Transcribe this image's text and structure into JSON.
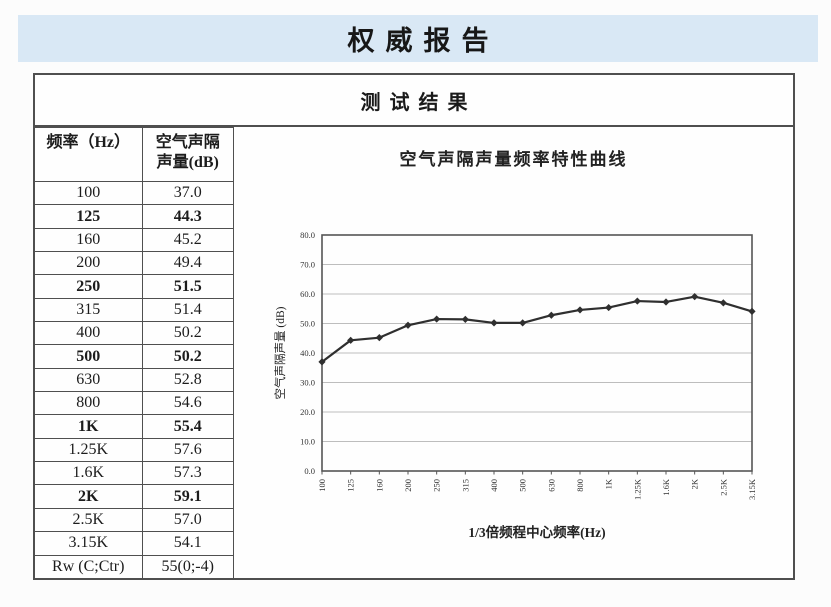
{
  "banner": {
    "title": "权威报告"
  },
  "report": {
    "section_title": "测试结果"
  },
  "table": {
    "headers": [
      "频率（Hz）",
      "空气声隔\n声量(dB)"
    ],
    "rows": [
      {
        "freq": "100",
        "value": "37.0",
        "bold": false
      },
      {
        "freq": "125",
        "value": "44.3",
        "bold": true
      },
      {
        "freq": "160",
        "value": "45.2",
        "bold": false
      },
      {
        "freq": "200",
        "value": "49.4",
        "bold": false
      },
      {
        "freq": "250",
        "value": "51.5",
        "bold": true
      },
      {
        "freq": "315",
        "value": "51.4",
        "bold": false
      },
      {
        "freq": "400",
        "value": "50.2",
        "bold": false
      },
      {
        "freq": "500",
        "value": "50.2",
        "bold": true
      },
      {
        "freq": "630",
        "value": "52.8",
        "bold": false
      },
      {
        "freq": "800",
        "value": "54.6",
        "bold": false
      },
      {
        "freq": "1K",
        "value": "55.4",
        "bold": true
      },
      {
        "freq": "1.25K",
        "value": "57.6",
        "bold": false
      },
      {
        "freq": "1.6K",
        "value": "57.3",
        "bold": false
      },
      {
        "freq": "2K",
        "value": "59.1",
        "bold": true
      },
      {
        "freq": "2.5K",
        "value": "57.0",
        "bold": false
      },
      {
        "freq": "3.15K",
        "value": "54.1",
        "bold": false
      },
      {
        "freq": "Rw (C;Ctr)",
        "value": "55(0;-4)",
        "bold": false
      }
    ]
  },
  "chart_data": {
    "type": "line",
    "title": "空气声隔声量频率特性曲线",
    "xlabel": "1/3倍频程中心频率(Hz)",
    "ylabel": "空气声隔声量 (dB)",
    "categories": [
      "100",
      "125",
      "160",
      "200",
      "250",
      "315",
      "400",
      "500",
      "630",
      "800",
      "1K",
      "1.25K",
      "1.6K",
      "2K",
      "2.5K",
      "3.15K"
    ],
    "values": [
      37.0,
      44.3,
      45.2,
      49.4,
      51.5,
      51.4,
      50.2,
      50.2,
      52.8,
      54.6,
      55.4,
      57.6,
      57.3,
      59.1,
      57.0,
      54.1
    ],
    "ylim": [
      0,
      80
    ],
    "ytick_step": 10,
    "ytick_labels": [
      "0.0",
      "10.0",
      "20.0",
      "30.0",
      "40.0",
      "50.0",
      "60.0",
      "70.0",
      "80.0"
    ],
    "grid": true,
    "legend": "none",
    "marker": "diamond"
  },
  "colors": {
    "banner_bg": "#d9e8f5",
    "border": "#4f4f4f",
    "grid_line": "#bdbdbd",
    "series_line": "#2f2f2f",
    "text": "#1c1c1c"
  }
}
